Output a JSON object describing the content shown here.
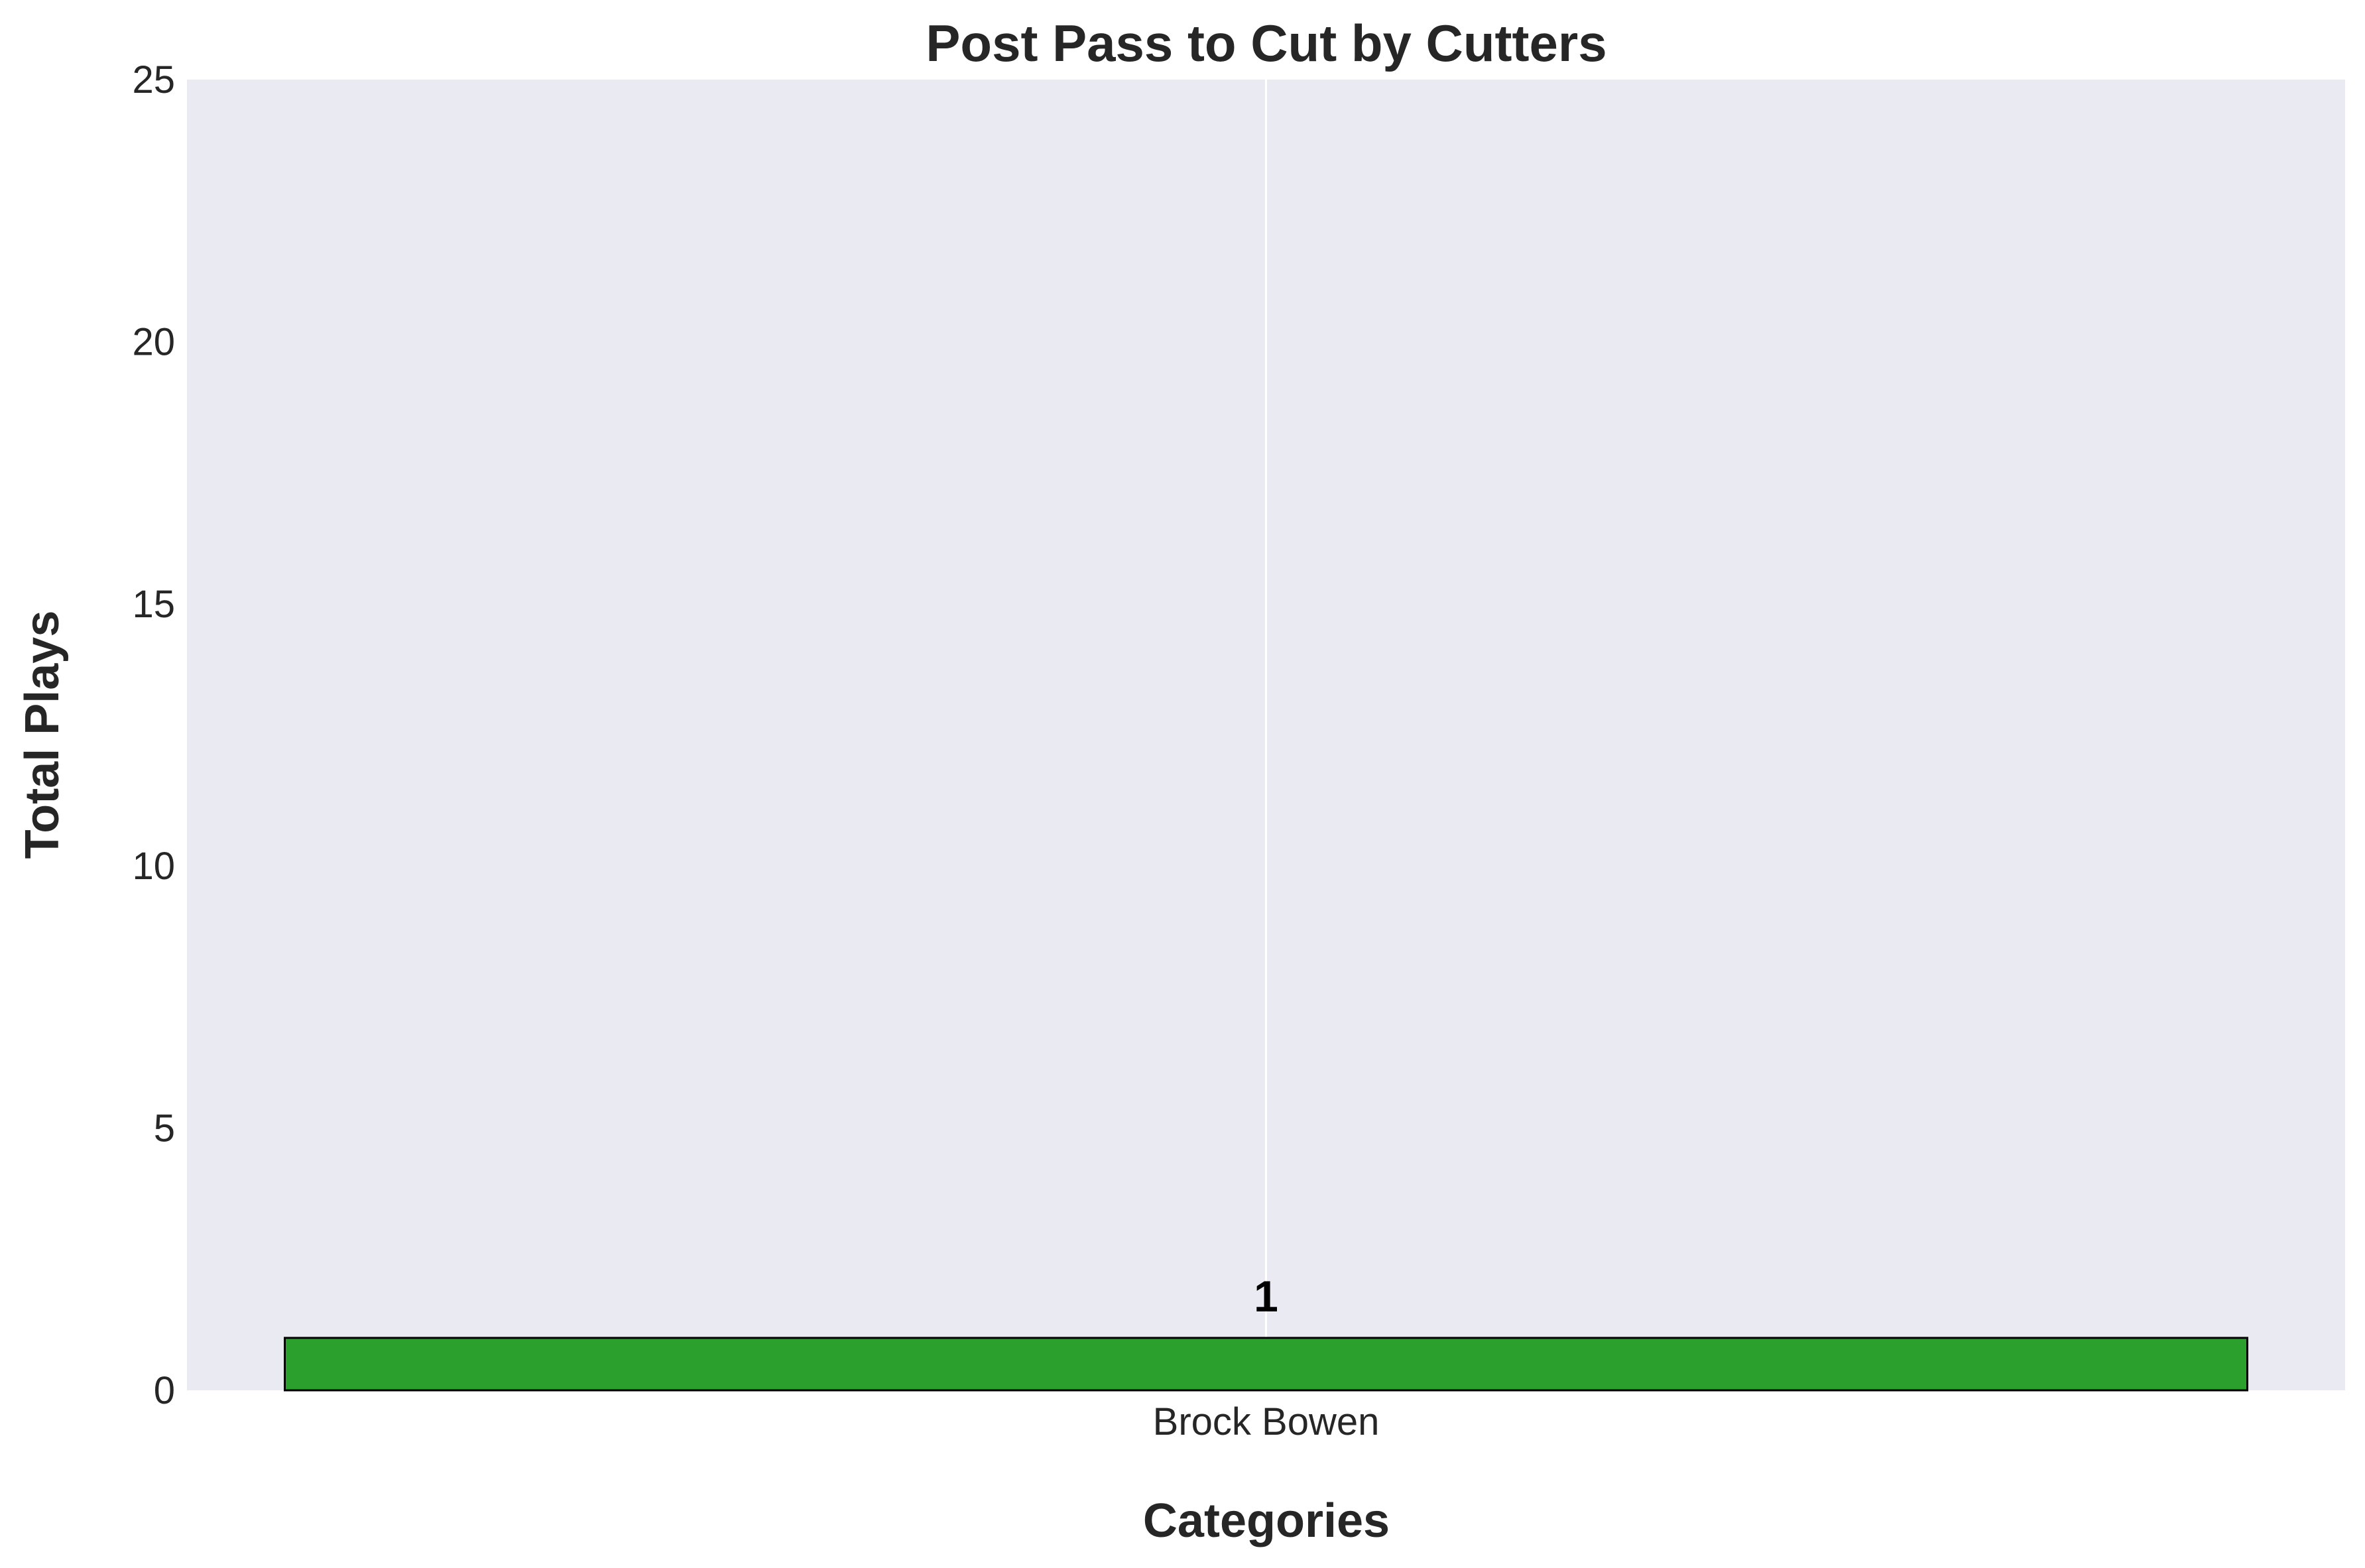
{
  "chart_data": {
    "type": "bar",
    "title": "Post Pass to Cut by Cutters",
    "xlabel": "Categories",
    "ylabel": "Total Plays",
    "categories": [
      "Brock Bowen"
    ],
    "values": [
      1
    ],
    "ylim": [
      0,
      25
    ],
    "yticks": [
      0,
      5,
      10,
      15,
      20,
      25
    ],
    "grid": true,
    "colors": {
      "bar": "#2ca02c",
      "bar_edge": "#000000",
      "plot_background": "#eaeaf2",
      "grid": "#ffffff"
    }
  }
}
